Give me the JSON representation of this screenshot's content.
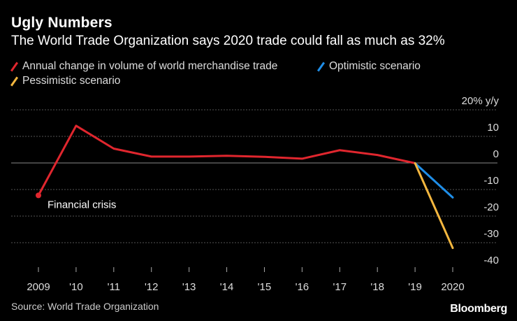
{
  "chart_data": {
    "type": "line",
    "title": "Ugly Numbers",
    "subtitle": "The World Trade Organization says 2020 trade could fall as much as 32%",
    "x": [
      "2009",
      "'10",
      "'11",
      "'12",
      "'13",
      "'14",
      "'15",
      "'16",
      "'17",
      "'18",
      "'19",
      "2020"
    ],
    "series": [
      {
        "name": "Annual change in volume of world merchandise trade",
        "color": "#e0262e",
        "values": [
          -12.2,
          14.0,
          5.4,
          2.4,
          2.4,
          2.7,
          2.3,
          1.6,
          4.8,
          3.0,
          -0.1,
          null
        ]
      },
      {
        "name": "Optimistic scenario",
        "color": "#1f8ee8",
        "values": [
          null,
          null,
          null,
          null,
          null,
          null,
          null,
          null,
          null,
          null,
          -0.1,
          -13.0
        ]
      },
      {
        "name": "Pessimistic scenario",
        "color": "#f4b73f",
        "values": [
          null,
          null,
          null,
          null,
          null,
          null,
          null,
          null,
          null,
          null,
          -0.1,
          -32.0
        ]
      }
    ],
    "yticks": [
      {
        "value": 20,
        "label": "20% y/y"
      },
      {
        "value": 10,
        "label": "10"
      },
      {
        "value": 0,
        "label": "0"
      },
      {
        "value": -10,
        "label": "-10"
      },
      {
        "value": -20,
        "label": "-20"
      },
      {
        "value": -30,
        "label": "-30"
      },
      {
        "value": -40,
        "label": "-40"
      }
    ],
    "ylim": [
      -40,
      20
    ],
    "annotations": [
      {
        "text": "Financial crisis",
        "x": "2009",
        "y": -12.2
      }
    ],
    "source": "Source: World Trade Organization",
    "brand": "Bloomberg"
  }
}
